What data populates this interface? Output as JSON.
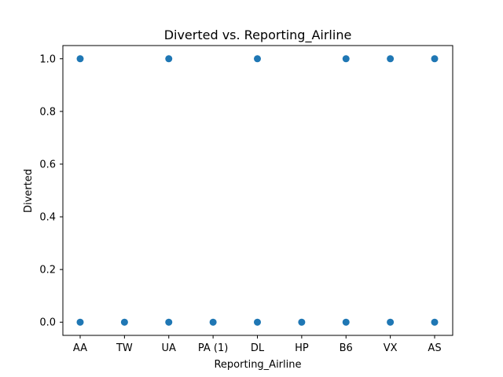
{
  "chart_data": {
    "type": "scatter",
    "title": "Diverted vs. Reporting_Airline",
    "xlabel": "Reporting_Airline",
    "ylabel": "Diverted",
    "categories": [
      "AA",
      "TW",
      "UA",
      "PA (1)",
      "DL",
      "HP",
      "B6",
      "VX",
      "AS"
    ],
    "yticks": [
      "0.0",
      "0.2",
      "0.4",
      "0.6",
      "0.8",
      "1.0"
    ],
    "ylim": [
      -0.05,
      1.05
    ],
    "grid": false,
    "marker_color": "#1f77b4",
    "points": [
      {
        "x": "AA",
        "y": 1.0
      },
      {
        "x": "AA",
        "y": 0.0
      },
      {
        "x": "TW",
        "y": 0.0
      },
      {
        "x": "UA",
        "y": 1.0
      },
      {
        "x": "UA",
        "y": 0.0
      },
      {
        "x": "PA (1)",
        "y": 0.0
      },
      {
        "x": "DL",
        "y": 1.0
      },
      {
        "x": "DL",
        "y": 0.0
      },
      {
        "x": "HP",
        "y": 0.0
      },
      {
        "x": "B6",
        "y": 1.0
      },
      {
        "x": "B6",
        "y": 0.0
      },
      {
        "x": "VX",
        "y": 1.0
      },
      {
        "x": "VX",
        "y": 0.0
      },
      {
        "x": "AS",
        "y": 1.0
      },
      {
        "x": "AS",
        "y": 0.0
      }
    ]
  }
}
